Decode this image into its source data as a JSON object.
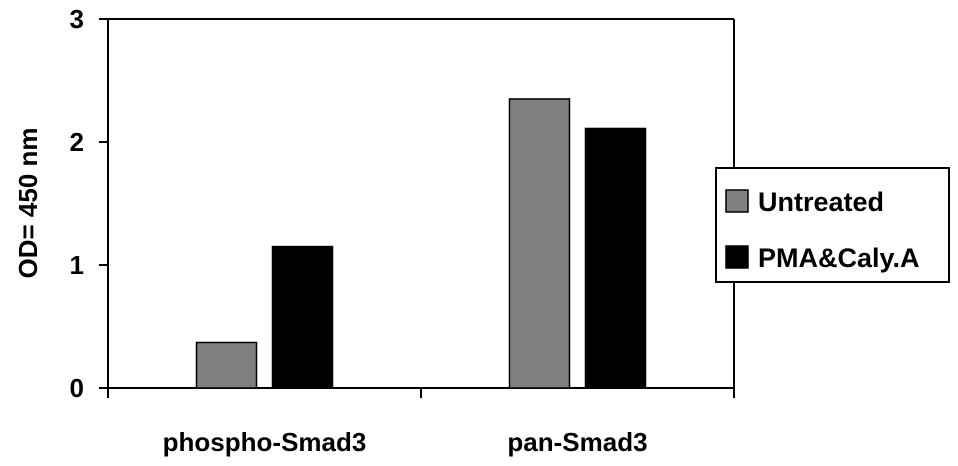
{
  "chart_data": {
    "type": "bar",
    "categories": [
      "phospho-Smad3",
      "pan-Smad3"
    ],
    "series": [
      {
        "name": "Untreated",
        "values": [
          0.37,
          2.35
        ],
        "color": "#808080"
      },
      {
        "name": "PMA&Caly.A",
        "values": [
          1.15,
          2.11
        ],
        "color": "#000000"
      }
    ],
    "ylabel": "OD= 450 nm",
    "ylim": [
      0,
      3
    ],
    "yticks": [
      "0",
      "1",
      "2",
      "3"
    ],
    "grid": false,
    "legend_position": "right"
  }
}
